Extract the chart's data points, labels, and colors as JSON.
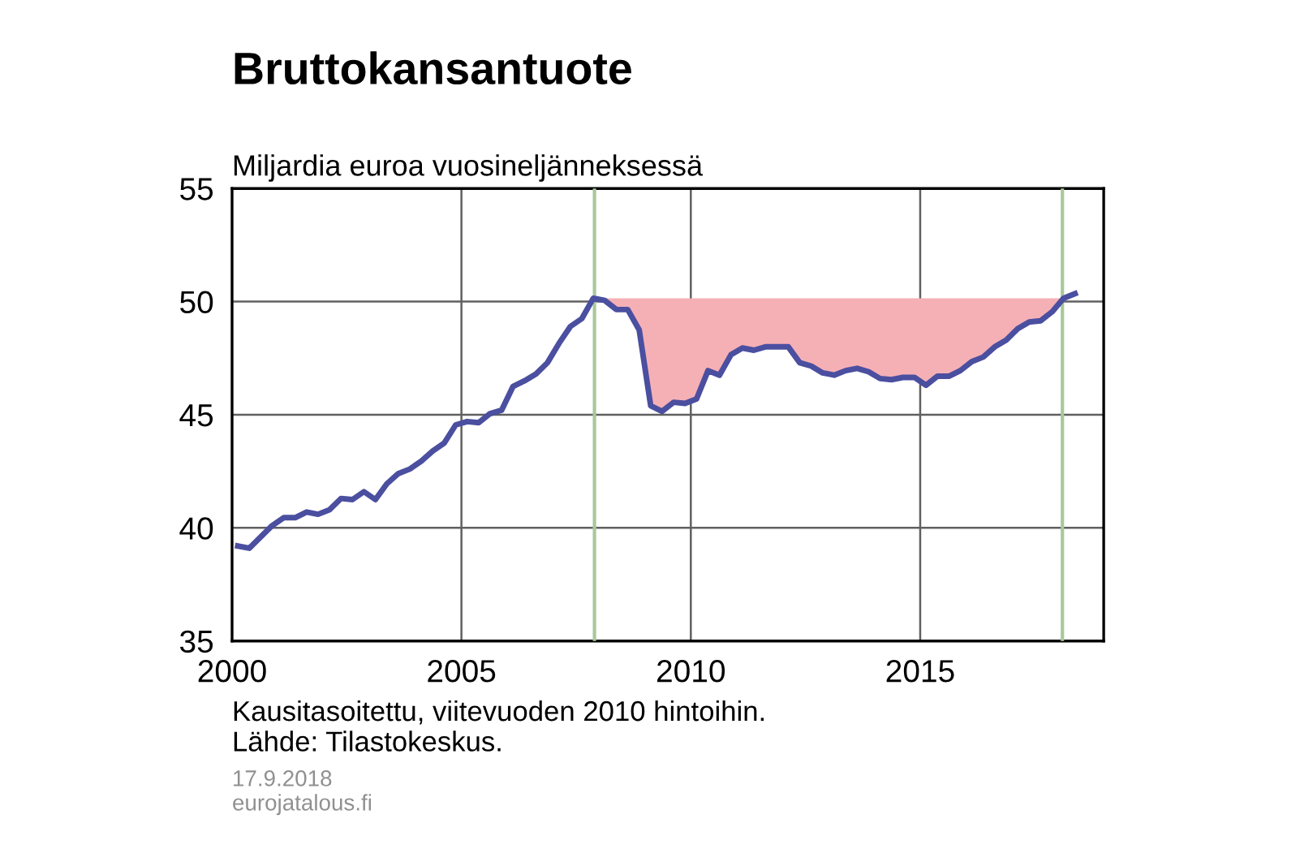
{
  "chart_data": {
    "type": "line",
    "title": "Bruttokansantuote",
    "ylabel": "Miljardia euroa vuosineljänneksessä",
    "x": [
      2000.125,
      2000.375,
      2000.625,
      2000.875,
      2001.125,
      2001.375,
      2001.625,
      2001.875,
      2002.125,
      2002.375,
      2002.625,
      2002.875,
      2003.125,
      2003.375,
      2003.625,
      2003.875,
      2004.125,
      2004.375,
      2004.625,
      2004.875,
      2005.125,
      2005.375,
      2005.625,
      2005.875,
      2006.125,
      2006.375,
      2006.625,
      2006.875,
      2007.125,
      2007.375,
      2007.625,
      2007.875,
      2008.125,
      2008.375,
      2008.625,
      2008.875,
      2009.125,
      2009.375,
      2009.625,
      2009.875,
      2010.125,
      2010.375,
      2010.625,
      2010.875,
      2011.125,
      2011.375,
      2011.625,
      2011.875,
      2012.125,
      2012.375,
      2012.625,
      2012.875,
      2013.125,
      2013.375,
      2013.625,
      2013.875,
      2014.125,
      2014.375,
      2014.625,
      2014.875,
      2015.125,
      2015.375,
      2015.625,
      2015.875,
      2016.125,
      2016.375,
      2016.625,
      2016.875,
      2017.125,
      2017.375,
      2017.625,
      2017.875,
      2018.125,
      2018.375
    ],
    "series": [
      {
        "color": "#4b4fa0",
        "values": [
          39.2,
          39.1,
          39.6,
          40.1,
          40.45,
          40.45,
          40.7,
          40.6,
          40.8,
          41.3,
          41.25,
          41.6,
          41.25,
          41.95,
          42.4,
          42.6,
          42.95,
          43.4,
          43.75,
          44.55,
          44.7,
          44.65,
          45.05,
          45.2,
          46.25,
          46.5,
          46.8,
          47.3,
          48.15,
          48.9,
          49.25,
          50.15,
          50.05,
          49.65,
          49.65,
          48.75,
          45.4,
          45.15,
          45.55,
          45.5,
          45.7,
          46.95,
          46.75,
          47.65,
          47.95,
          47.85,
          48.0,
          48.0,
          48.0,
          47.3,
          47.15,
          46.85,
          46.75,
          46.95,
          47.05,
          46.9,
          46.6,
          46.55,
          46.65,
          46.65,
          46.3,
          46.7,
          46.7,
          46.95,
          47.35,
          47.55,
          48.0,
          48.3,
          48.8,
          49.1,
          49.15,
          49.55,
          50.15,
          50.35
        ],
        "lower": [
          null,
          null,
          null,
          null,
          null,
          null,
          null,
          null,
          null,
          null,
          null,
          null,
          null,
          null,
          null,
          null,
          null,
          null,
          null,
          null,
          null,
          null,
          null,
          null,
          null,
          null,
          null,
          null,
          null,
          null,
          null,
          50.15,
          50.05,
          49.65,
          49.65,
          48.75,
          45.4,
          45.15,
          45.55,
          45.5,
          45.7,
          46.95,
          46.75,
          47.65,
          47.95,
          47.85,
          48.0,
          48.0,
          48.0,
          47.3,
          47.15,
          46.85,
          46.75,
          46.95,
          47.05,
          46.9,
          46.6,
          46.55,
          46.65,
          46.65,
          46.3,
          46.7,
          46.7,
          46.95,
          47.35,
          47.55,
          48.0,
          48.3,
          48.8,
          49.1,
          49.15,
          49.55,
          50.15,
          null
        ],
        "upper": [
          null,
          null,
          null,
          null,
          null,
          null,
          null,
          null,
          null,
          null,
          null,
          null,
          null,
          null,
          null,
          null,
          null,
          null,
          null,
          null,
          null,
          null,
          null,
          null,
          null,
          null,
          null,
          null,
          null,
          null,
          null,
          50.15,
          50.15,
          50.15,
          50.15,
          50.15,
          50.15,
          50.15,
          50.15,
          50.15,
          50.15,
          50.15,
          50.15,
          50.15,
          50.15,
          50.15,
          50.15,
          50.15,
          50.15,
          50.15,
          50.15,
          50.15,
          50.15,
          50.15,
          50.15,
          50.15,
          50.15,
          50.15,
          50.15,
          50.15,
          50.15,
          50.15,
          50.15,
          50.15,
          50.15,
          50.15,
          50.15,
          50.15,
          50.15,
          50.15,
          50.15,
          50.15,
          50.15,
          null
        ]
      }
    ],
    "xlim": [
      2000,
      2019
    ],
    "xticks": [
      2000,
      2005,
      2010,
      2015
    ],
    "ylim": [
      35,
      55
    ],
    "yticks": [
      35,
      40,
      45,
      50,
      55
    ],
    "grid": true,
    "legend": false,
    "marker": "none",
    "line_style": "solid",
    "ref_lines": [
      {
        "axis": "x",
        "value": 2007.9,
        "label": null,
        "color": "#a8c89a"
      },
      {
        "axis": "x",
        "value": 2018.1,
        "label": null,
        "color": "#a8c89a"
      }
    ],
    "annotations": [
      "Kausitasoitettu, viitevuoden 2010 hintoihin.\nLähde: Tilastokeskus.",
      "17.9.2018\neurojatalous.fi"
    ]
  }
}
